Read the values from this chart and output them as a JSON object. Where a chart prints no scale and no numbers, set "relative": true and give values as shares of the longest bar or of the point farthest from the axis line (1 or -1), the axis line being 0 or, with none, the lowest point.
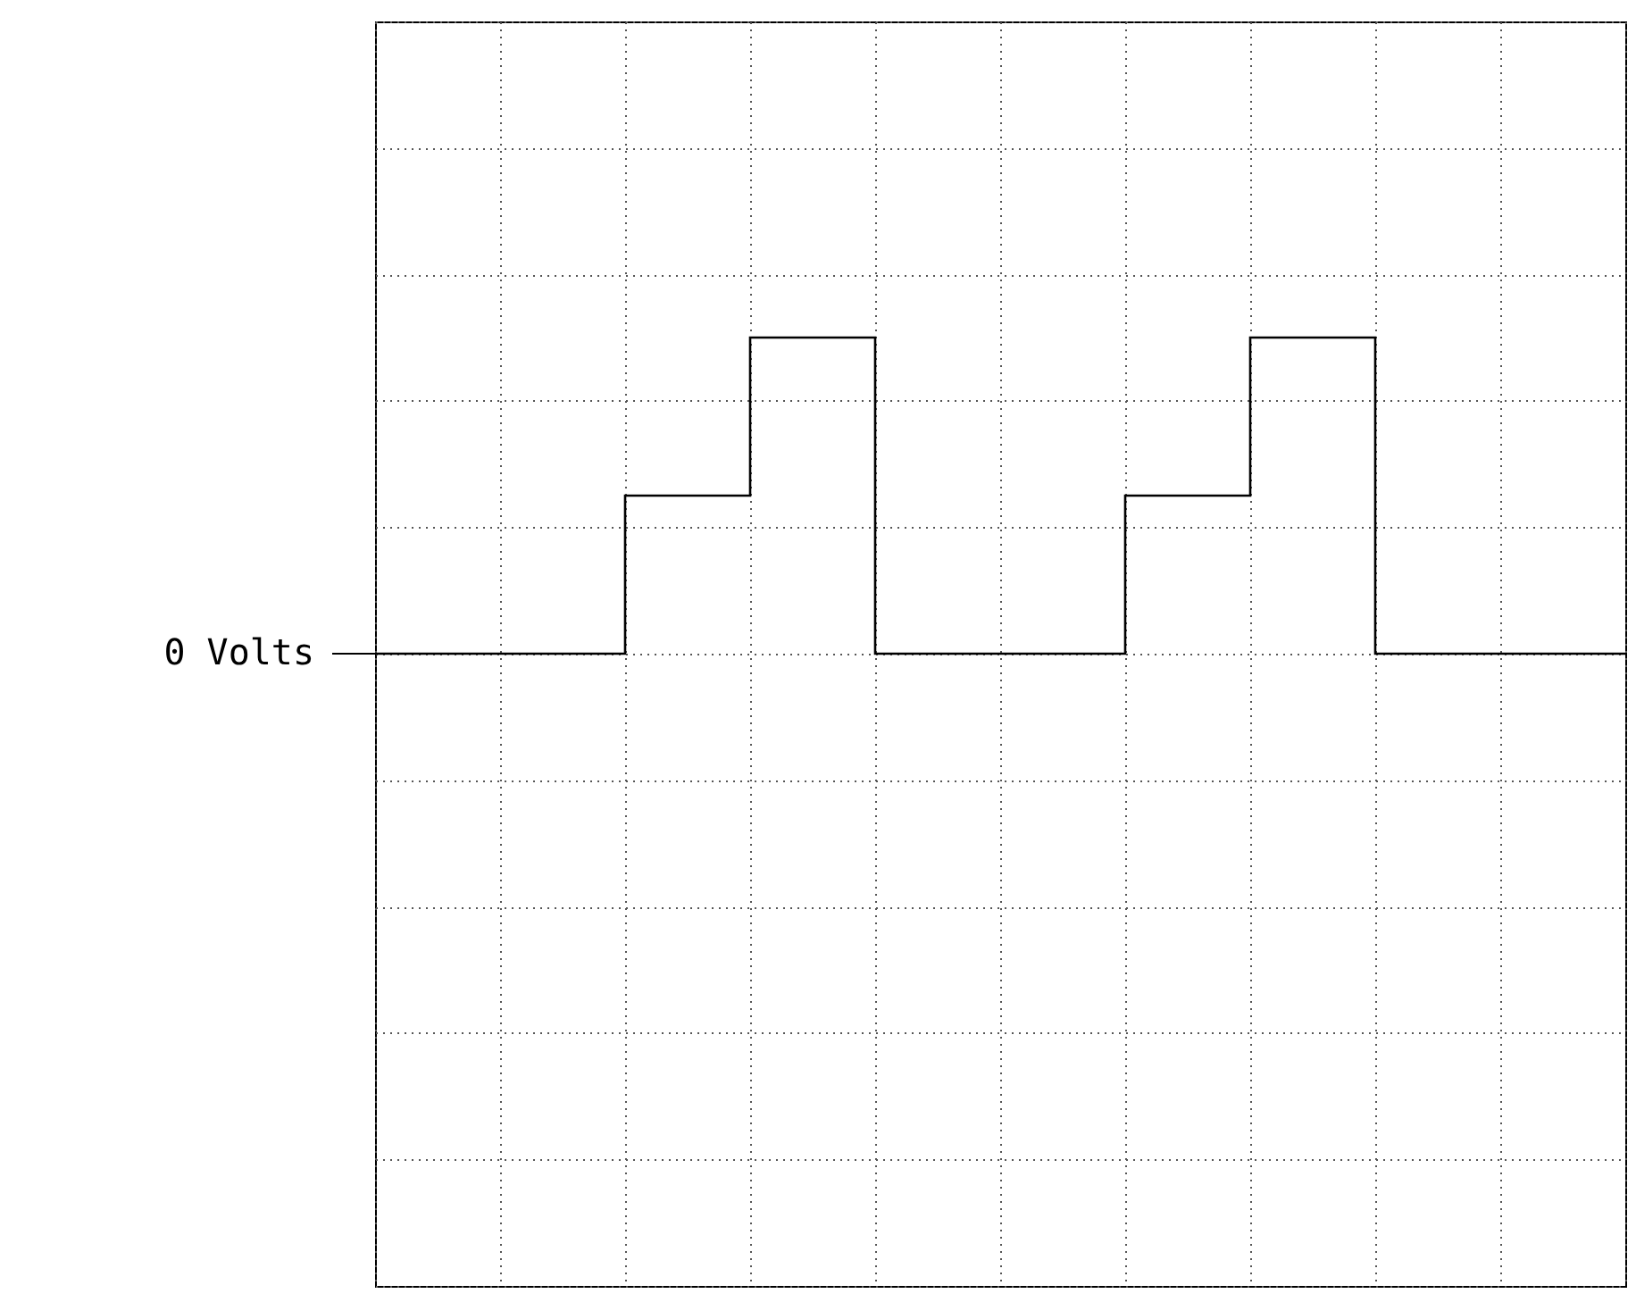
{
  "chart_data": {
    "type": "step",
    "relative": true,
    "categories": [
      null,
      null,
      null,
      null,
      null,
      null,
      null,
      null,
      null,
      null,
      null
    ],
    "series": [
      {
        "color": "#000000",
        "values": [
          0,
          0,
          0.5,
          1,
          0,
          0,
          0.5,
          1,
          0,
          0,
          0
        ]
      }
    ],
    "grid": true,
    "line_style": "solid",
    "marker": "none",
    "annotations": [
      "0 Volts"
    ]
  }
}
